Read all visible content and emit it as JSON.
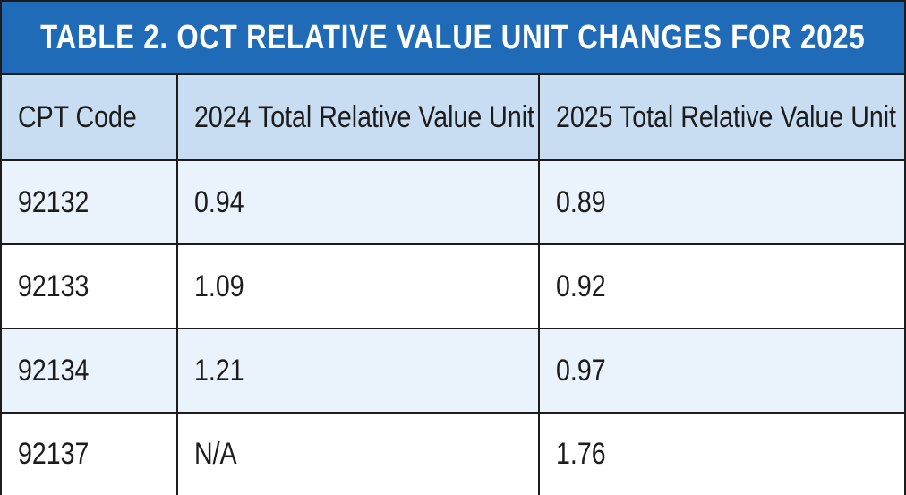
{
  "title": "TABLE 2. OCT RELATIVE VALUE UNIT CHANGES FOR 2025",
  "colors": {
    "title_background": "#1f6bb7",
    "title_text": "#ffffff",
    "header_background": "#c9ddf2",
    "alternate_row_background": "#eaf2fb",
    "row_background": "#ffffff",
    "border": "#1c1c1c"
  },
  "table": {
    "headers": [
      "CPT Code",
      "2024 Total Relative Value Unit",
      "2025 Total Relative Value Unit"
    ],
    "rows": [
      [
        "92132",
        "0.94",
        "0.89"
      ],
      [
        "92133",
        "1.09",
        "0.92"
      ],
      [
        "92134",
        "1.21",
        "0.97"
      ],
      [
        "92137",
        "N/A",
        "1.76"
      ]
    ]
  }
}
